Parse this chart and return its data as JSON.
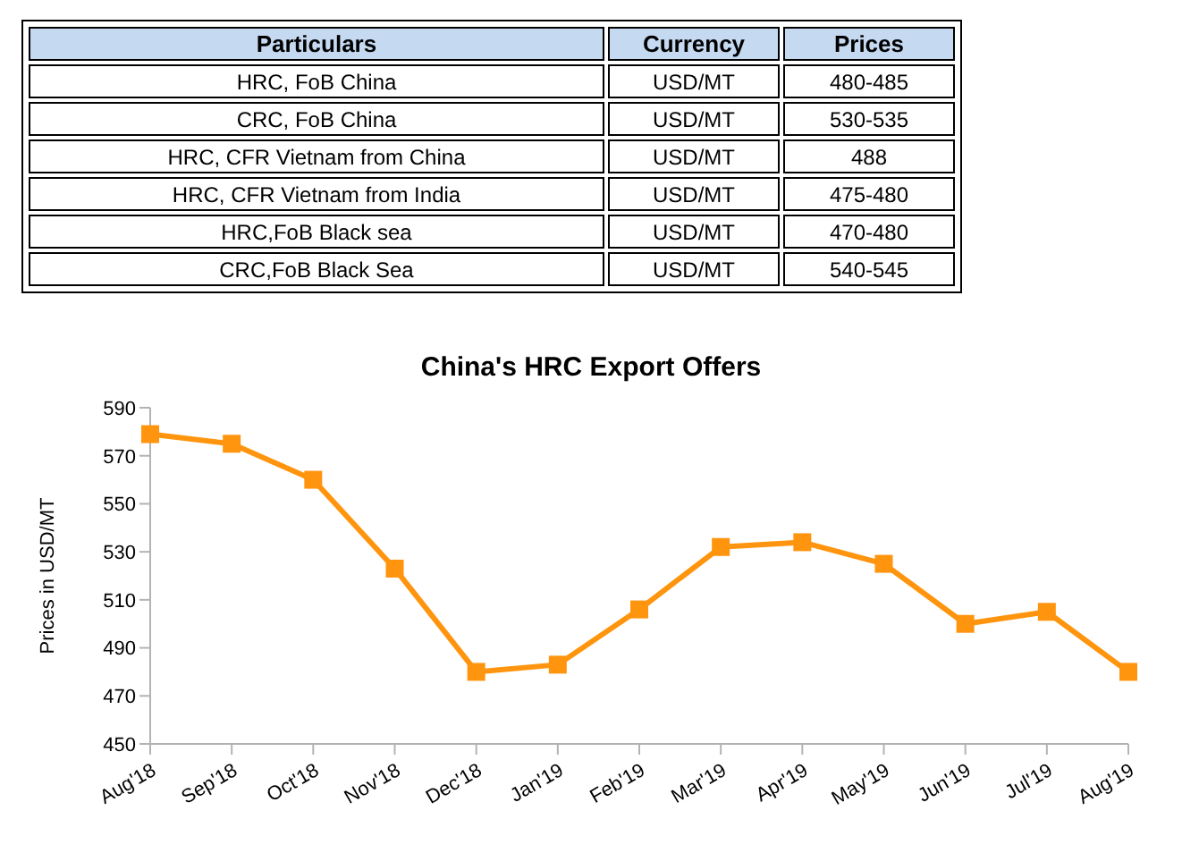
{
  "chart_data": [
    {
      "type": "other",
      "categories": [
        "Particulars",
        "Currency",
        "Prices"
      ],
      "cell_labels": [
        [
          "HRC, FoB China",
          "USD/MT",
          "480-485"
        ],
        [
          "CRC, FoB China",
          "USD/MT",
          "530-535"
        ],
        [
          "HRC, CFR Vietnam from China",
          "USD/MT",
          "488"
        ],
        [
          "HRC, CFR Vietnam from India",
          "USD/MT",
          "475-480"
        ],
        [
          "HRC,FoB Black sea",
          "USD/MT",
          "470-480"
        ],
        [
          "CRC,FoB Black Sea",
          "USD/MT",
          "540-545"
        ]
      ]
    },
    {
      "type": "line",
      "title": "China's HRC Export Offers",
      "ylabel": "Prices in USD/MT",
      "categories": [
        "Aug'18",
        "Sep'18",
        "Oct'18",
        "Nov'18",
        "Dec'18",
        "Jan'19",
        "Feb'19",
        "Mar'19",
        "Apr'19",
        "May'19",
        "Jun'19",
        "Jul'19",
        "Aug'19"
      ],
      "values": [
        579,
        575,
        560,
        523,
        480,
        483,
        506,
        532,
        534,
        525,
        500,
        505,
        480
      ],
      "color": "#ff950e",
      "ylim": [
        450,
        590
      ],
      "yticks": [
        450,
        470,
        490,
        510,
        530,
        550,
        570,
        590
      ],
      "grid": false,
      "legend": false,
      "marker": "square",
      "line_style": "solid"
    }
  ]
}
